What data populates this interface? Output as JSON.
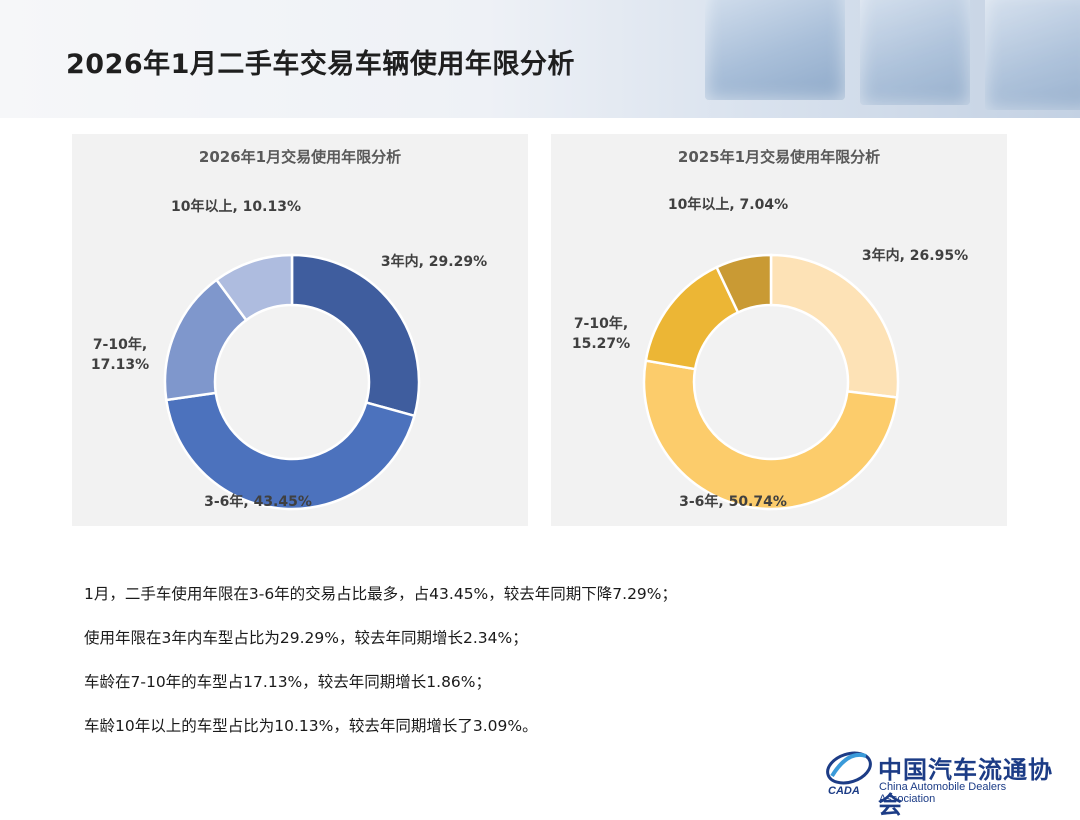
{
  "page": {
    "title": "2026年1月二手车交易车辆使用年限分析"
  },
  "chart_data": [
    {
      "type": "pie",
      "donut": true,
      "title": "2026年1月交易使用年限分析",
      "categories": [
        "3年内",
        "3-6年",
        "7-10年",
        "10年以上"
      ],
      "values": [
        29.29,
        43.45,
        17.13,
        10.13
      ],
      "labels": [
        "3年内, 29.29%",
        "3-6年, 43.45%",
        "7-10年,",
        "10年以上, 10.13%"
      ],
      "labels_line2": [
        "",
        "",
        "17.13%",
        ""
      ],
      "colors": [
        "#3f5d9e",
        "#4c72bd",
        "#7f97cc",
        "#aebcdf"
      ]
    },
    {
      "type": "pie",
      "donut": true,
      "title": "2025年1月交易使用年限分析",
      "categories": [
        "3年内",
        "3-6年",
        "7-10年",
        "10年以上"
      ],
      "values": [
        26.95,
        50.74,
        15.27,
        7.04
      ],
      "labels": [
        "3年内, 26.95%",
        "3-6年, 50.74%",
        "7-10年,",
        "10年以上, 7.04%"
      ],
      "labels_line2": [
        "",
        "",
        "15.27%",
        ""
      ],
      "colors": [
        "#fde2b6",
        "#fccc6b",
        "#ecb635",
        "#c99a34"
      ]
    }
  ],
  "summary": [
    "1月，二手车使用年限在3-6年的交易占比最多，占43.45%，较去年同期下降7.29%；",
    "使用年限在3年内车型占比为29.29%，较去年同期增长2.34%；",
    "车龄在7-10年的车型占17.13%，较去年同期增长1.86%；",
    "车龄10年以上的车型占比为10.13%，较去年同期增长了3.09%。"
  ],
  "logo": {
    "cn": "中国汽车流通协会",
    "en": "China Automobile Dealers Association",
    "mark": "CADA"
  }
}
